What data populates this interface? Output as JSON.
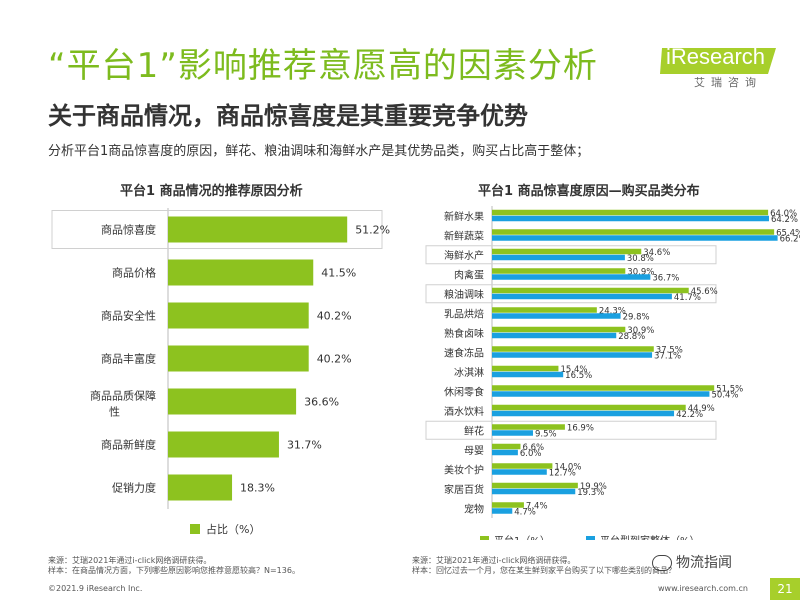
{
  "header": {
    "title": "“平台1”影响推荐意愿高的因素分析",
    "subtitle": "关于商品情况，商品惊喜度是其重要竞争优势",
    "intro": "分析平台1商品惊喜度的原因，鲜花、粮油调味和海鲜水产是其优势品类，购买占比高于整体；"
  },
  "logo": {
    "word": "iResearch",
    "cn": "艾瑞咨询"
  },
  "colors": {
    "accent": "#a7cf2b",
    "green_bar": "#8dc21f",
    "blue_bar": "#1aa0e0",
    "title_green": "#7dbb1e"
  },
  "chart_data": [
    {
      "type": "bar",
      "orientation": "horizontal",
      "title": "平台1 商品情况的推荐原因分析",
      "categories": [
        "商品惊喜度",
        "商品价格",
        "商品安全性",
        "商品丰富度",
        "商品品质保障性",
        "商品新鲜度",
        "促销力度"
      ],
      "values": [
        51.2,
        41.5,
        40.2,
        40.2,
        36.6,
        31.7,
        18.3
      ],
      "value_labels": [
        "51.2%",
        "41.5%",
        "40.2%",
        "40.2%",
        "36.6%",
        "31.7%",
        "18.3%"
      ],
      "highlighted": [
        "商品惊喜度"
      ],
      "series_name": "占比（%）",
      "xlim": [
        0,
        60
      ]
    },
    {
      "type": "bar",
      "orientation": "horizontal",
      "title": "平台1 商品惊喜度原因—购买品类分布",
      "categories": [
        "新鲜水果",
        "新鲜蔬菜",
        "海鲜水产",
        "肉禽蛋",
        "粮油调味",
        "乳品烘焙",
        "熟食卤味",
        "速食冻品",
        "冰淇淋",
        "休闲零食",
        "酒水饮料",
        "鲜花",
        "母婴",
        "美妆个护",
        "家居百货",
        "宠物"
      ],
      "series": [
        {
          "name": "平台1（%）",
          "values": [
            64.0,
            65.4,
            34.6,
            30.9,
            45.6,
            24.3,
            30.9,
            37.5,
            15.4,
            51.5,
            44.9,
            16.9,
            6.6,
            14.0,
            19.9,
            7.4
          ],
          "labels": [
            "64.0%",
            "65.4%",
            "34.6%",
            "30.9%",
            "45.6%",
            "24.3%",
            "30.9%",
            "37.5%",
            "15.4%",
            "51.5%",
            "44.9%",
            "16.9%",
            "6.6%",
            "14.0%",
            "19.9%",
            "7.4%"
          ]
        },
        {
          "name": "平台型到家整体（%）",
          "values": [
            64.2,
            66.2,
            30.8,
            36.7,
            41.7,
            29.8,
            28.8,
            37.1,
            16.5,
            50.4,
            42.2,
            9.5,
            6.0,
            12.7,
            19.3,
            4.7
          ],
          "labels": [
            "64.2%",
            "66.2%",
            "30.8%",
            "36.7%",
            "41.7%",
            "29.8%",
            "28.8%",
            "37.1%",
            "16.5%",
            "50.4%",
            "42.2%",
            "9.5%",
            "6.0%",
            "12.7%",
            "19.3%",
            "4.7%"
          ]
        }
      ],
      "highlighted": [
        "海鲜水产",
        "粮油调味",
        "鲜花"
      ],
      "xlim": [
        0,
        70
      ]
    }
  ],
  "footer": {
    "left_source": "来源：艾瑞2021年通过i-click网络调研获得。",
    "left_sample": "样本：在商品情况方面，下列哪些原因影响您推荐意愿较高？N=136。",
    "right_source": "来源：艾瑞2021年通过i-click网络调研获得。",
    "right_sample": "样本：回忆过去一个月，您在某生鲜到家平台购买了以下哪些类别的商品？",
    "copyright": "©2021.9 iResearch Inc.",
    "website": "www.iresearch.com.cn",
    "page": "21",
    "watermark": "物流指闻"
  }
}
